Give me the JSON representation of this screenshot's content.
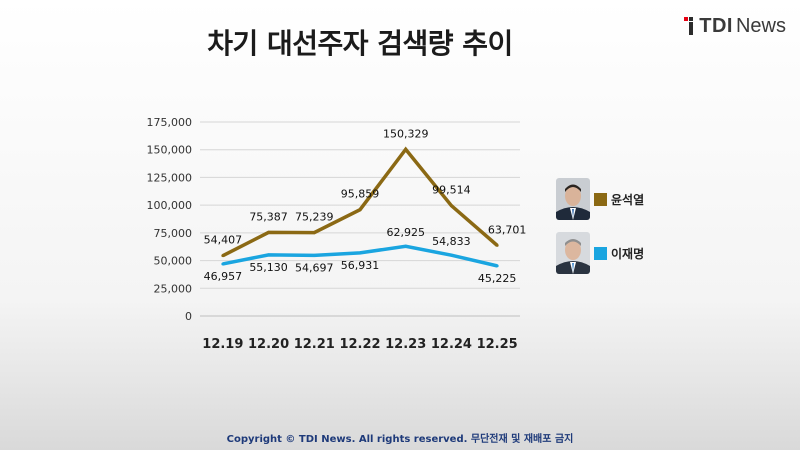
{
  "title": "차기 대선주자 검색량 추이",
  "logo": {
    "brand": "TDI",
    "sub": "News"
  },
  "copyright": "Copyright © TDI News. All rights reserved. 무단전재 및 재배포 금지",
  "chart_data": {
    "type": "line",
    "title": "차기 대선주자 검색량 추이",
    "categories": [
      "12.19",
      "12.20",
      "12.21",
      "12.22",
      "12.23",
      "12.24",
      "12.25"
    ],
    "yticks": [
      "0",
      "25,000",
      "50,000",
      "75,000",
      "100,000",
      "125,000",
      "150,000",
      "175,000"
    ],
    "ylim": [
      0,
      175000
    ],
    "grid": true,
    "legend_position": "right",
    "series": [
      {
        "name": "윤석열",
        "color": "#8b6914",
        "values": [
          54407,
          75387,
          75239,
          95859,
          150329,
          99514,
          63701
        ],
        "labels": [
          "54,407",
          "75,387",
          "75,239",
          "95,859",
          "150,329",
          "99,514",
          "63,701"
        ]
      },
      {
        "name": "이재명",
        "color": "#1aa5e0",
        "values": [
          46957,
          55130,
          54697,
          56931,
          62925,
          54833,
          45225
        ],
        "labels": [
          "46,957",
          "55,130",
          "54,697",
          "56,931",
          "62,925",
          "54,833",
          "45,225"
        ]
      }
    ]
  }
}
